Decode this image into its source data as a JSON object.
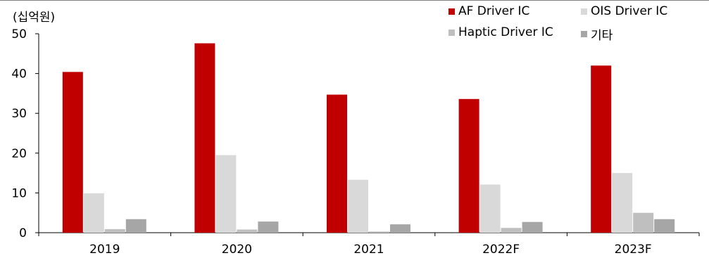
{
  "unit_label": "(십억원)",
  "chart_data": {
    "type": "bar",
    "categories": [
      "2019",
      "2020",
      "2021",
      "2022F",
      "2023F"
    ],
    "series": [
      {
        "name": "AF Driver IC",
        "color": "#c00000",
        "values": [
          40.4,
          47.6,
          34.7,
          33.6,
          42.0
        ]
      },
      {
        "name": "OIS Driver IC",
        "color": "#d9d9d9",
        "values": [
          9.9,
          19.5,
          13.3,
          12.1,
          15.0
        ]
      },
      {
        "name": "Haptic Driver IC",
        "color": "#bfbfbf",
        "values": [
          0.9,
          0.8,
          0.3,
          1.2,
          5.0
        ]
      },
      {
        "name": "기타",
        "color": "#a6a6a6",
        "values": [
          3.4,
          2.8,
          2.1,
          2.7,
          3.4
        ]
      }
    ],
    "yticks": [
      0,
      10,
      20,
      30,
      40,
      50
    ],
    "ylim": [
      0,
      50
    ],
    "grid": false,
    "legend": "top-right"
  }
}
